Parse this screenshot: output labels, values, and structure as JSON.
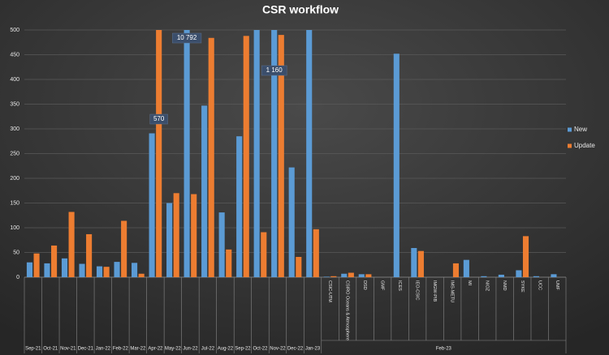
{
  "chart_data": {
    "type": "bar",
    "title": "CSR workflow",
    "categories": [
      "Sep-21",
      "Oct-21",
      "Nov-21",
      "Dec-21",
      "Jan-22",
      "Feb-22",
      "Mar-22",
      "Apr-22",
      "May-22",
      "Jun-22",
      "Jul-22",
      "Aug-22",
      "Sep-22",
      "Oct-22",
      "Nov-22",
      "Dec-22",
      "Jan-23",
      "CSIC-UTM",
      "CSIRO Oceans & Atmosphere",
      "DSD",
      "GMF",
      "ICES",
      "IEO-CSIC",
      "IMGW-PIB",
      "IMS-METU",
      "MI",
      "NIOZ",
      "NMD",
      "SYKE",
      "UCC",
      "UMF"
    ],
    "groups": [
      {
        "label": "Feb-23",
        "count": 14
      }
    ],
    "series": [
      {
        "name": "New",
        "color": "#5b9bd5",
        "values": [
          30,
          28,
          38,
          27,
          22,
          31,
          29,
          291,
          150,
          10792,
          347,
          131,
          285,
          510,
          1160,
          222,
          510,
          1,
          7,
          6,
          0,
          452,
          59,
          0,
          0,
          35,
          2,
          5,
          14,
          2,
          6
        ],
        "value_labels": [
          null,
          null,
          null,
          null,
          null,
          null,
          null,
          null,
          null,
          "10 792",
          null,
          null,
          null,
          null,
          "1 160",
          null,
          null,
          null,
          null,
          null,
          null,
          null,
          null,
          null,
          null,
          null,
          null,
          null,
          null,
          null,
          null
        ]
      },
      {
        "name": "Update",
        "color": "#ed7d31",
        "values": [
          48,
          64,
          132,
          87,
          21,
          114,
          7,
          570,
          170,
          168,
          484,
          56,
          488,
          91,
          490,
          41,
          97,
          2,
          9,
          6,
          0,
          0,
          53,
          0,
          28,
          0,
          0,
          0,
          83,
          0,
          0
        ],
        "value_labels": [
          null,
          null,
          null,
          null,
          null,
          null,
          null,
          "570",
          null,
          null,
          null,
          null,
          null,
          null,
          null,
          null,
          null,
          null,
          null,
          null,
          null,
          null,
          null,
          null,
          null,
          null,
          null,
          null,
          null,
          null,
          null
        ]
      }
    ],
    "ylim": [
      0,
      500
    ],
    "yticks": [
      0,
      50,
      100,
      150,
      200,
      250,
      300,
      350,
      400,
      450,
      500
    ],
    "grid": true,
    "legend": "right"
  }
}
